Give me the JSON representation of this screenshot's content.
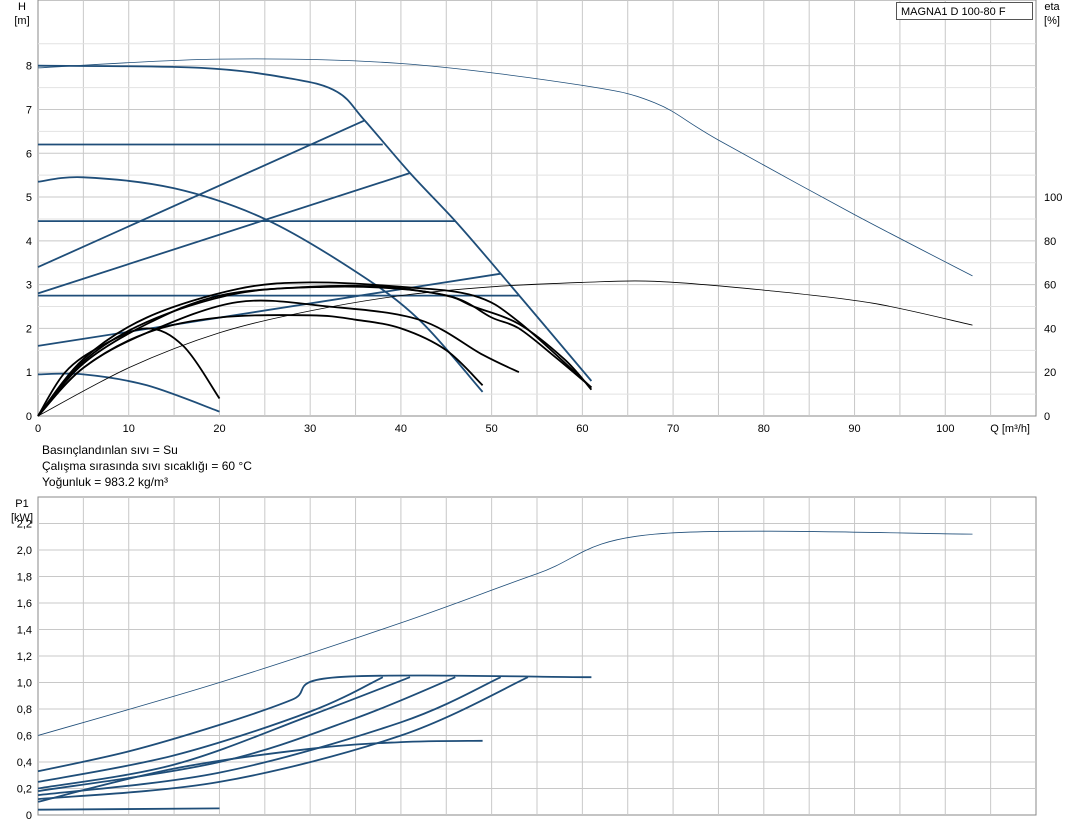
{
  "model": "MAGNA1 D 100-80 F",
  "info": {
    "fluid": "Basınçlandınlan sıvı = Su",
    "temperature": "Çalışma sırasında sıvı sıcaklığı = 60 °C",
    "density": "Yoğunluk = 983.2 kg/m³"
  },
  "colors": {
    "curve": "#1f4e79",
    "efficiency": "#000000",
    "grid": "#c8c8c8"
  },
  "chart_data": [
    {
      "type": "line",
      "name": "head-curves",
      "ylabel_top": "H",
      "ylabel_unit": "[m]",
      "y2label_top": "eta",
      "y2label_unit": "[%]",
      "xlabel": "Q [m³/h]",
      "xlim": [
        0,
        110
      ],
      "ylim": [
        0,
        9.5
      ],
      "y2lim": [
        0,
        100
      ],
      "x_ticks": [
        "0",
        "10",
        "20",
        "30",
        "40",
        "50",
        "60",
        "70",
        "80",
        "90",
        "100"
      ],
      "y_ticks": [
        "0",
        "1",
        "2",
        "3",
        "4",
        "5",
        "6",
        "7",
        "8"
      ],
      "y2_ticks": [
        "0",
        "20",
        "40",
        "60",
        "80",
        "100"
      ],
      "grid": true,
      "series": [
        {
          "style": "thin",
          "points": [
            [
              0,
              7.95
            ],
            [
              20,
              8.15
            ],
            [
              40,
              8.05
            ],
            [
              60,
              7.55
            ],
            [
              68,
              7.15
            ],
            [
              75,
              6.3
            ],
            [
              90,
              4.6
            ],
            [
              103,
              3.2
            ]
          ]
        },
        {
          "style": "thick",
          "points": [
            [
              0,
              8.0
            ],
            [
              18,
              7.95
            ],
            [
              28,
              7.7
            ],
            [
              33,
              7.4
            ],
            [
              36,
              6.75
            ],
            [
              41,
              5.55
            ],
            [
              46,
              4.45
            ],
            [
              51,
              3.25
            ],
            [
              61,
              0.8
            ]
          ]
        },
        {
          "style": "thick",
          "points": [
            [
              0,
              3.4
            ],
            [
              36,
              6.75
            ]
          ]
        },
        {
          "style": "thick",
          "points": [
            [
              0,
              2.8
            ],
            [
              41,
              5.55
            ]
          ]
        },
        {
          "style": "thick",
          "points": [
            [
              0,
              1.6
            ],
            [
              51,
              3.25
            ]
          ]
        },
        {
          "style": "thick",
          "points": [
            [
              0,
              6.2
            ],
            [
              38,
              6.2
            ]
          ]
        },
        {
          "style": "thick",
          "points": [
            [
              0,
              4.45
            ],
            [
              46,
              4.45
            ]
          ]
        },
        {
          "style": "thick",
          "points": [
            [
              0,
              2.75
            ],
            [
              53,
              2.75
            ]
          ]
        },
        {
          "style": "thick",
          "points": [
            [
              0,
              5.35
            ],
            [
              5,
              5.45
            ],
            [
              15,
              5.2
            ],
            [
              25,
              4.5
            ],
            [
              35,
              3.3
            ],
            [
              42,
              2.2
            ],
            [
              49,
              0.55
            ]
          ]
        },
        {
          "style": "thick",
          "points": [
            [
              0,
              0.95
            ],
            [
              5,
              0.95
            ],
            [
              12,
              0.7
            ],
            [
              20,
              0.1
            ]
          ]
        },
        {
          "style": "thin-eta",
          "points": [
            [
              0,
              0
            ],
            [
              10,
              22
            ],
            [
              20,
              38
            ],
            [
              30,
              48
            ],
            [
              40,
              55
            ],
            [
              50,
              59
            ],
            [
              60,
              61
            ],
            [
              68,
              61.5
            ],
            [
              80,
              57.5
            ],
            [
              92,
              51.5
            ],
            [
              103,
              41.5
            ]
          ]
        },
        {
          "style": "eta",
          "points": [
            [
              0,
              0
            ],
            [
              5,
              22
            ],
            [
              12,
              38
            ],
            [
              20,
              45
            ],
            [
              30,
              46
            ],
            [
              35,
              44
            ],
            [
              40,
              40
            ],
            [
              45,
              30
            ],
            [
              49,
              14
            ]
          ]
        },
        {
          "style": "eta",
          "points": [
            [
              0,
              0
            ],
            [
              5,
              25
            ],
            [
              12,
              43
            ],
            [
              22,
              56
            ],
            [
              32,
              59
            ],
            [
              40,
              58
            ],
            [
              46,
              54
            ],
            [
              50,
              45
            ],
            [
              53,
              40
            ],
            [
              57,
              27
            ],
            [
              61,
              13
            ]
          ]
        },
        {
          "style": "eta",
          "points": [
            [
              0,
              0
            ],
            [
              5,
              24
            ],
            [
              12,
              42
            ],
            [
              20,
              55
            ],
            [
              30,
              59
            ],
            [
              38,
              59
            ],
            [
              45,
              55
            ],
            [
              48,
              50
            ],
            [
              53,
              42
            ],
            [
              58,
              26
            ],
            [
              61,
              12
            ]
          ]
        },
        {
          "style": "eta",
          "points": [
            [
              0,
              0
            ],
            [
              5,
              26
            ],
            [
              12,
              45
            ],
            [
              22,
              58
            ],
            [
              30,
              61
            ],
            [
              40,
              59
            ],
            [
              48,
              55
            ],
            [
              53,
              43
            ],
            [
              61,
              13
            ]
          ]
        },
        {
          "style": "eta",
          "points": [
            [
              0,
              0
            ],
            [
              5,
              22
            ],
            [
              12,
              38
            ],
            [
              22,
              52
            ],
            [
              32,
              50
            ],
            [
              42,
              44
            ],
            [
              49,
              28
            ],
            [
              53,
              20
            ]
          ]
        },
        {
          "style": "eta",
          "points": [
            [
              0,
              0
            ],
            [
              3,
              20
            ],
            [
              7,
              32
            ],
            [
              12,
              40
            ],
            [
              16,
              32
            ],
            [
              20,
              8
            ]
          ]
        }
      ]
    },
    {
      "type": "line",
      "name": "power-curves",
      "ylabel_top": "P1",
      "ylabel_unit": "[kW]",
      "xlim": [
        0,
        110
      ],
      "ylim": [
        0,
        2.4
      ],
      "y_ticks": [
        "0",
        "0,2",
        "0,4",
        "0,6",
        "0,8",
        "1,0",
        "1,2",
        "1,4",
        "1,6",
        "1,8",
        "2,0",
        "2,2"
      ],
      "grid": true,
      "series": [
        {
          "style": "thin",
          "points": [
            [
              0,
              0.6
            ],
            [
              20,
              1.0
            ],
            [
              40,
              1.45
            ],
            [
              55,
              1.82
            ],
            [
              68,
              2.12
            ],
            [
              103,
              2.12
            ]
          ]
        },
        {
          "style": "thick",
          "points": [
            [
              0,
              0.33
            ],
            [
              10,
              0.48
            ],
            [
              20,
              0.68
            ],
            [
              28,
              0.87
            ],
            [
              33,
              1.04
            ],
            [
              61,
              1.04
            ]
          ]
        },
        {
          "style": "thick",
          "points": [
            [
              0,
              0.25
            ],
            [
              15,
              0.45
            ],
            [
              30,
              0.78
            ],
            [
              38,
              1.04
            ]
          ]
        },
        {
          "style": "thick",
          "points": [
            [
              0,
              0.2
            ],
            [
              15,
              0.38
            ],
            [
              30,
              0.75
            ],
            [
              41,
              1.04
            ]
          ]
        },
        {
          "style": "thick",
          "points": [
            [
              0,
              0.18
            ],
            [
              20,
              0.4
            ],
            [
              35,
              0.73
            ],
            [
              46,
              1.04
            ]
          ]
        },
        {
          "style": "thick",
          "points": [
            [
              0,
              0.15
            ],
            [
              20,
              0.32
            ],
            [
              40,
              0.7
            ],
            [
              51,
              1.04
            ]
          ]
        },
        {
          "style": "thick",
          "points": [
            [
              0,
              0.12
            ],
            [
              20,
              0.25
            ],
            [
              40,
              0.6
            ],
            [
              54,
              1.04
            ]
          ]
        },
        {
          "style": "thick",
          "points": [
            [
              0,
              0.1
            ],
            [
              15,
              0.35
            ],
            [
              30,
              0.5
            ],
            [
              40,
              0.55
            ],
            [
              49,
              0.56
            ]
          ]
        },
        {
          "style": "thick",
          "points": [
            [
              0,
              0.04
            ],
            [
              20,
              0.05
            ]
          ]
        }
      ]
    }
  ]
}
